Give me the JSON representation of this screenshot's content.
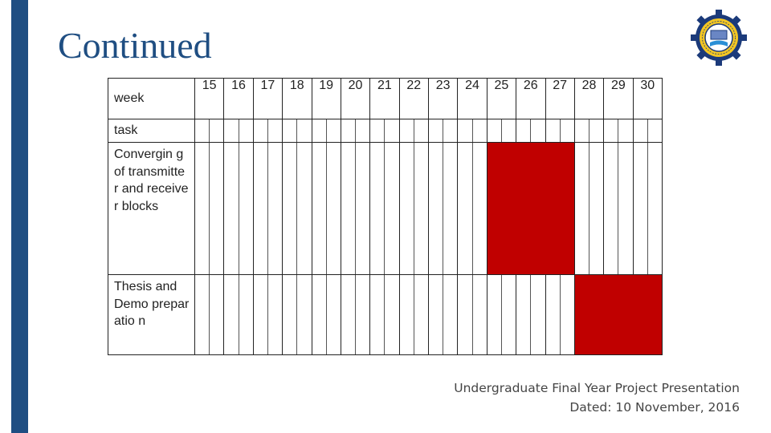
{
  "slide": {
    "title": "Continued",
    "accent_color": "#1f4e82",
    "logo_icon": "university-seal-gear-logo"
  },
  "gantt": {
    "header_label": "week",
    "task_label": "task",
    "weeks": [
      "15",
      "16",
      "17",
      "18",
      "19",
      "20",
      "21",
      "22",
      "23",
      "24",
      "25",
      "26",
      "27",
      "28",
      "29",
      "30"
    ],
    "bar_color": "#c00000",
    "tasks": [
      {
        "name": "Convergin g of transmitte r and receiver blocks",
        "start_week": "25",
        "end_week": "27"
      },
      {
        "name": "Thesis and Demo preparatio n",
        "start_week": "28",
        "end_week": "30"
      }
    ]
  },
  "footer": {
    "line1": "Undergraduate Final Year Project Presentation",
    "line2": "Dated: 10 November, 2016"
  }
}
